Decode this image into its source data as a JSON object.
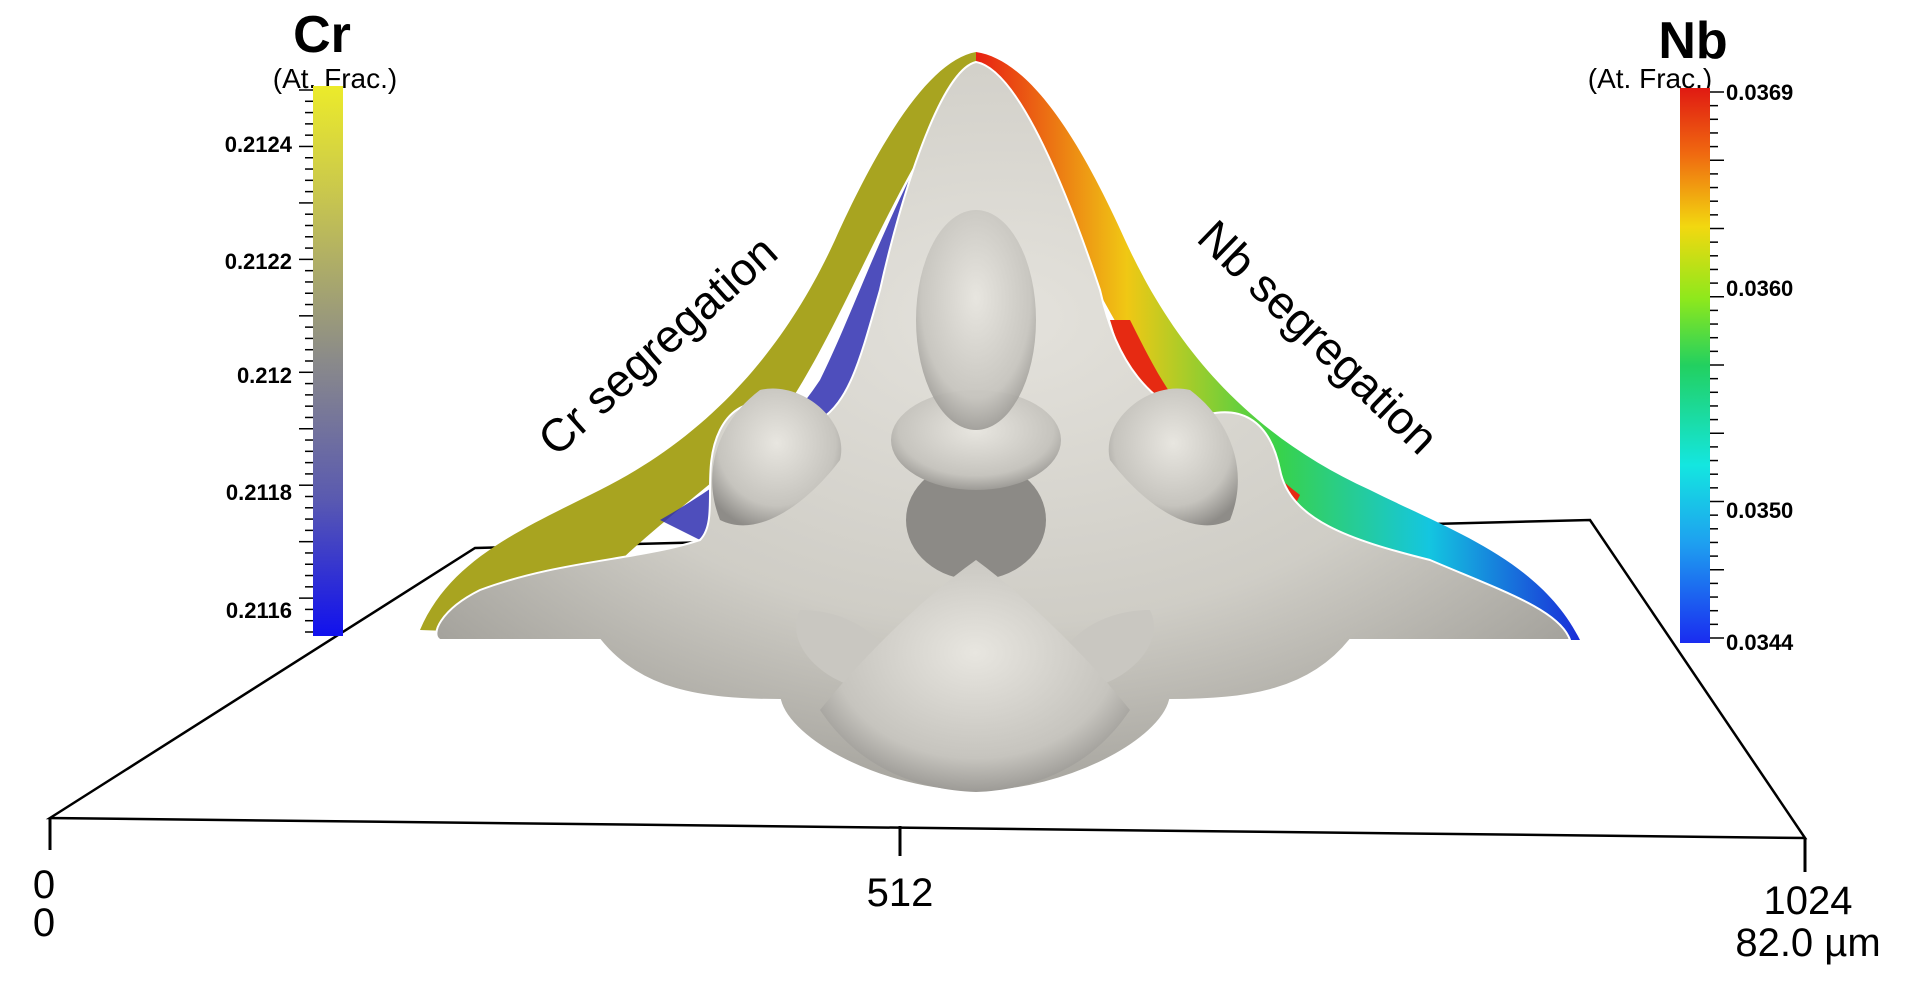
{
  "cr_legend": {
    "title": "Cr",
    "unit": "(At. Frac.)",
    "ticks": [
      "0.2124",
      "0.2122",
      "0.212",
      "0.2118",
      "0.2116"
    ],
    "colors": [
      "#eceb2a",
      "#9c9a6a",
      "#8a8a8a",
      "#5a5ab0",
      "#1111ee"
    ]
  },
  "nb_legend": {
    "title": "Nb",
    "unit": "(At. Frac.)",
    "ticks": [
      "0.0369",
      "0.0360",
      "0.0350",
      "0.0344"
    ],
    "colors": [
      "#e01a12",
      "#f06a10",
      "#f2d810",
      "#8ee81c",
      "#22d060",
      "#14e6e0",
      "#1ea0f0",
      "#1a2cf0"
    ]
  },
  "annotations": {
    "cr_label": "Cr segregation",
    "nb_label": "Nb segregation"
  },
  "axis": {
    "tick_left_top": "0",
    "tick_left_bottom": "0",
    "tick_mid": "512",
    "tick_right_top": "1024",
    "tick_right_bottom": "82.0 µm"
  }
}
